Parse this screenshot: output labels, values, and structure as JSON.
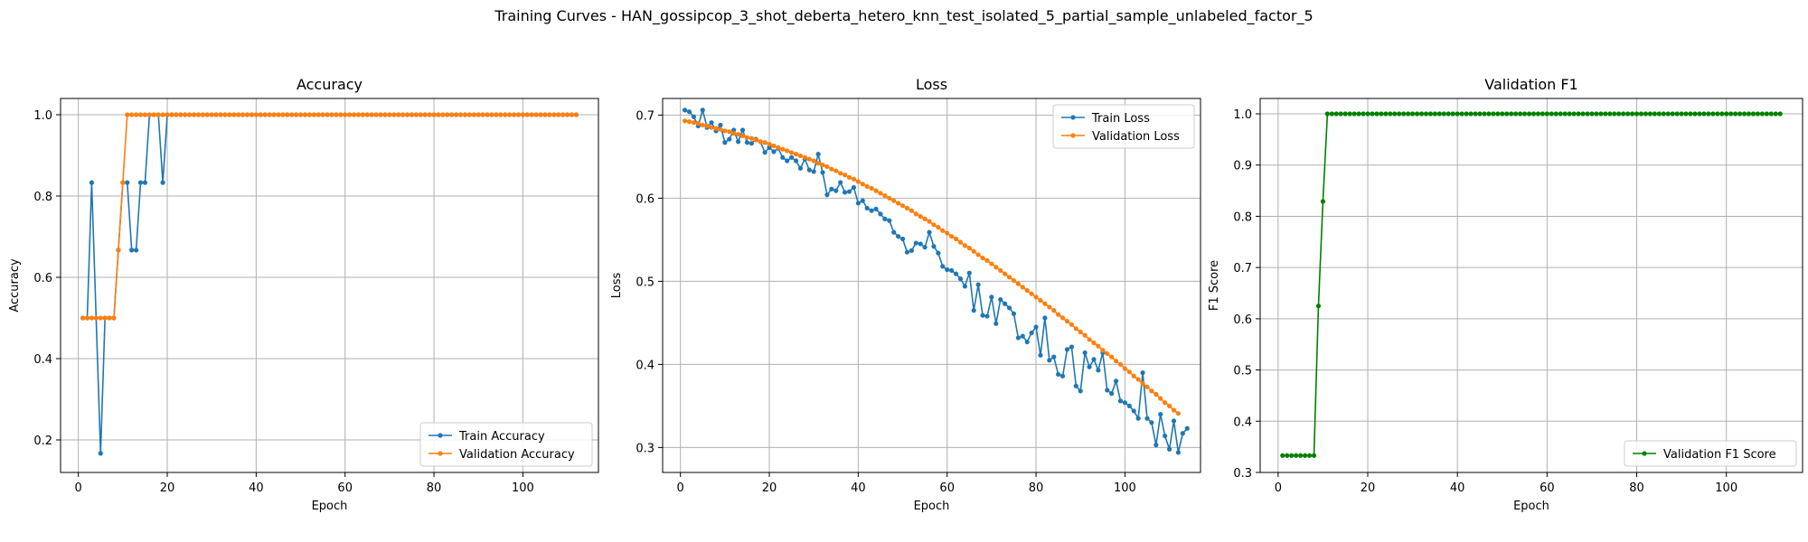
{
  "figure_title": "Training Curves - HAN_gossipcop_3_shot_deberta_hetero_knn_test_isolated_5_partial_sample_unlabeled_factor_5",
  "colors": {
    "train": "#1f77b4",
    "validation": "#ff7f0e",
    "f1": "#008000",
    "grid": "#b0b0b0"
  },
  "chart_data": [
    {
      "type": "line",
      "title": "Accuracy",
      "xlabel": "Epoch",
      "ylabel": "Accuracy",
      "xlim": [
        -4,
        117
      ],
      "ylim": [
        0.12,
        1.04
      ],
      "xticks": [
        0,
        20,
        40,
        60,
        80,
        100
      ],
      "yticks": [
        0.2,
        0.4,
        0.6,
        0.8,
        1.0
      ],
      "ytick_labels": [
        "0.2",
        "0.4",
        "0.6",
        "0.8",
        "1.0"
      ],
      "grid": true,
      "legend_position": "lower-right",
      "series": [
        {
          "name": "Train Accuracy",
          "color": "#1f77b4",
          "x_start": 1,
          "values": [
            0.5,
            0.5,
            0.833,
            0.5,
            0.167,
            0.5,
            0.5,
            0.5,
            0.667,
            0.833,
            0.833,
            0.667,
            0.667,
            0.833,
            0.833,
            1.0,
            1.0,
            1.0,
            0.833,
            1.0,
            1.0,
            1.0,
            1.0,
            1.0,
            1.0,
            1.0,
            1.0,
            1.0,
            1.0,
            1.0,
            1.0,
            1.0,
            1.0,
            1.0,
            1.0,
            1.0,
            1.0,
            1.0,
            1.0,
            1.0,
            1.0,
            1.0,
            1.0,
            1.0,
            1.0,
            1.0,
            1.0,
            1.0,
            1.0,
            1.0,
            1.0,
            1.0,
            1.0,
            1.0,
            1.0,
            1.0,
            1.0,
            1.0,
            1.0,
            1.0,
            1.0,
            1.0,
            1.0,
            1.0,
            1.0,
            1.0,
            1.0,
            1.0,
            1.0,
            1.0,
            1.0,
            1.0,
            1.0,
            1.0,
            1.0,
            1.0,
            1.0,
            1.0,
            1.0,
            1.0,
            1.0,
            1.0,
            1.0,
            1.0,
            1.0,
            1.0,
            1.0,
            1.0,
            1.0,
            1.0,
            1.0,
            1.0,
            1.0,
            1.0,
            1.0,
            1.0,
            1.0,
            1.0,
            1.0,
            1.0,
            1.0,
            1.0,
            1.0,
            1.0,
            1.0,
            1.0,
            1.0,
            1.0,
            1.0,
            1.0,
            1.0,
            1.0
          ]
        },
        {
          "name": "Validation Accuracy",
          "color": "#ff7f0e",
          "x_start": 1,
          "values": [
            0.5,
            0.5,
            0.5,
            0.5,
            0.5,
            0.5,
            0.5,
            0.5,
            0.667,
            0.833,
            1.0,
            1.0,
            1.0,
            1.0,
            1.0,
            1.0,
            1.0,
            1.0,
            1.0,
            1.0,
            1.0,
            1.0,
            1.0,
            1.0,
            1.0,
            1.0,
            1.0,
            1.0,
            1.0,
            1.0,
            1.0,
            1.0,
            1.0,
            1.0,
            1.0,
            1.0,
            1.0,
            1.0,
            1.0,
            1.0,
            1.0,
            1.0,
            1.0,
            1.0,
            1.0,
            1.0,
            1.0,
            1.0,
            1.0,
            1.0,
            1.0,
            1.0,
            1.0,
            1.0,
            1.0,
            1.0,
            1.0,
            1.0,
            1.0,
            1.0,
            1.0,
            1.0,
            1.0,
            1.0,
            1.0,
            1.0,
            1.0,
            1.0,
            1.0,
            1.0,
            1.0,
            1.0,
            1.0,
            1.0,
            1.0,
            1.0,
            1.0,
            1.0,
            1.0,
            1.0,
            1.0,
            1.0,
            1.0,
            1.0,
            1.0,
            1.0,
            1.0,
            1.0,
            1.0,
            1.0,
            1.0,
            1.0,
            1.0,
            1.0,
            1.0,
            1.0,
            1.0,
            1.0,
            1.0,
            1.0,
            1.0,
            1.0,
            1.0,
            1.0,
            1.0,
            1.0,
            1.0,
            1.0,
            1.0,
            1.0,
            1.0,
            1.0
          ]
        }
      ]
    },
    {
      "type": "line",
      "title": "Loss",
      "xlabel": "Epoch",
      "ylabel": "Loss",
      "xlim": [
        -4,
        117
      ],
      "ylim": [
        0.27,
        0.72
      ],
      "xticks": [
        0,
        20,
        40,
        60,
        80,
        100
      ],
      "yticks": [
        0.3,
        0.4,
        0.5,
        0.6,
        0.7
      ],
      "ytick_labels": [
        "0.3",
        "0.4",
        "0.5",
        "0.6",
        "0.7"
      ],
      "grid": true,
      "legend_position": "upper-right",
      "series": [
        {
          "name": "Train Loss",
          "color": "#1f77b4",
          "x_start": 1,
          "values": [
            0.706,
            0.704,
            0.698,
            0.687,
            0.706,
            0.685,
            0.691,
            0.681,
            0.688,
            0.667,
            0.671,
            0.682,
            0.668,
            0.682,
            0.667,
            0.666,
            0.671,
            0.668,
            0.655,
            0.661,
            0.656,
            0.66,
            0.649,
            0.645,
            0.649,
            0.645,
            0.636,
            0.647,
            0.634,
            0.632,
            0.653,
            0.631,
            0.604,
            0.611,
            0.609,
            0.619,
            0.607,
            0.608,
            0.613,
            0.594,
            0.597,
            0.588,
            0.585,
            0.587,
            0.581,
            0.575,
            0.573,
            0.559,
            0.554,
            0.551,
            0.535,
            0.537,
            0.546,
            0.545,
            0.541,
            0.559,
            0.542,
            0.534,
            0.518,
            0.514,
            0.513,
            0.509,
            0.503,
            0.494,
            0.51,
            0.465,
            0.496,
            0.459,
            0.458,
            0.481,
            0.449,
            0.478,
            0.473,
            0.468,
            0.461,
            0.432,
            0.434,
            0.427,
            0.438,
            0.445,
            0.411,
            0.456,
            0.405,
            0.409,
            0.388,
            0.386,
            0.418,
            0.421,
            0.374,
            0.368,
            0.414,
            0.397,
            0.406,
            0.393,
            0.414,
            0.369,
            0.365,
            0.38,
            0.356,
            0.354,
            0.35,
            0.344,
            0.335,
            0.39,
            0.335,
            0.33,
            0.303,
            0.34,
            0.314,
            0.298,
            0.332,
            0.294,
            0.317,
            0.323
          ]
        },
        {
          "name": "Validation Loss",
          "color": "#ff7f0e",
          "x_start": 1,
          "values": [
            0.693,
            0.692,
            0.691,
            0.69,
            0.688,
            0.687,
            0.685,
            0.684,
            0.683,
            0.681,
            0.68,
            0.678,
            0.677,
            0.675,
            0.673,
            0.672,
            0.67,
            0.668,
            0.667,
            0.665,
            0.663,
            0.661,
            0.659,
            0.657,
            0.655,
            0.653,
            0.651,
            0.649,
            0.647,
            0.645,
            0.642,
            0.64,
            0.638,
            0.635,
            0.633,
            0.63,
            0.628,
            0.625,
            0.623,
            0.62,
            0.617,
            0.614,
            0.612,
            0.609,
            0.606,
            0.603,
            0.6,
            0.597,
            0.594,
            0.591,
            0.588,
            0.585,
            0.581,
            0.578,
            0.575,
            0.572,
            0.568,
            0.565,
            0.561,
            0.558,
            0.554,
            0.551,
            0.547,
            0.543,
            0.54,
            0.536,
            0.532,
            0.528,
            0.525,
            0.521,
            0.517,
            0.513,
            0.509,
            0.505,
            0.501,
            0.497,
            0.493,
            0.489,
            0.485,
            0.481,
            0.477,
            0.473,
            0.469,
            0.465,
            0.46,
            0.456,
            0.452,
            0.448,
            0.443,
            0.439,
            0.435,
            0.43,
            0.426,
            0.422,
            0.417,
            0.413,
            0.409,
            0.404,
            0.4,
            0.395,
            0.391,
            0.386,
            0.382,
            0.377,
            0.373,
            0.368,
            0.364,
            0.359,
            0.354,
            0.35,
            0.345,
            0.341
          ]
        }
      ]
    },
    {
      "type": "line",
      "title": "Validation F1",
      "xlabel": "Epoch",
      "ylabel": "F1 Score",
      "xlim": [
        -4,
        117
      ],
      "ylim": [
        0.3,
        1.03
      ],
      "xticks": [
        0,
        20,
        40,
        60,
        80,
        100
      ],
      "yticks": [
        0.3,
        0.4,
        0.5,
        0.6,
        0.7,
        0.8,
        0.9,
        1.0
      ],
      "ytick_labels": [
        "0.3",
        "0.4",
        "0.5",
        "0.6",
        "0.7",
        "0.8",
        "0.9",
        "1.0"
      ],
      "grid": true,
      "legend_position": "lower-right",
      "series": [
        {
          "name": "Validation F1 Score",
          "color": "#008000",
          "x_start": 1,
          "values": [
            0.333,
            0.333,
            0.333,
            0.333,
            0.333,
            0.333,
            0.333,
            0.333,
            0.625,
            0.829,
            1.0,
            1.0,
            1.0,
            1.0,
            1.0,
            1.0,
            1.0,
            1.0,
            1.0,
            1.0,
            1.0,
            1.0,
            1.0,
            1.0,
            1.0,
            1.0,
            1.0,
            1.0,
            1.0,
            1.0,
            1.0,
            1.0,
            1.0,
            1.0,
            1.0,
            1.0,
            1.0,
            1.0,
            1.0,
            1.0,
            1.0,
            1.0,
            1.0,
            1.0,
            1.0,
            1.0,
            1.0,
            1.0,
            1.0,
            1.0,
            1.0,
            1.0,
            1.0,
            1.0,
            1.0,
            1.0,
            1.0,
            1.0,
            1.0,
            1.0,
            1.0,
            1.0,
            1.0,
            1.0,
            1.0,
            1.0,
            1.0,
            1.0,
            1.0,
            1.0,
            1.0,
            1.0,
            1.0,
            1.0,
            1.0,
            1.0,
            1.0,
            1.0,
            1.0,
            1.0,
            1.0,
            1.0,
            1.0,
            1.0,
            1.0,
            1.0,
            1.0,
            1.0,
            1.0,
            1.0,
            1.0,
            1.0,
            1.0,
            1.0,
            1.0,
            1.0,
            1.0,
            1.0,
            1.0,
            1.0,
            1.0,
            1.0,
            1.0,
            1.0,
            1.0,
            1.0,
            1.0,
            1.0,
            1.0,
            1.0,
            1.0,
            1.0
          ]
        }
      ]
    }
  ]
}
